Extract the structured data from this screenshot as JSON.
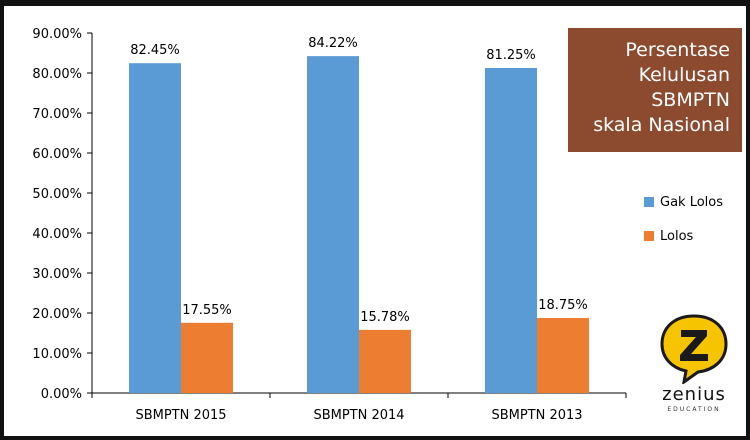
{
  "chart_data": {
    "type": "bar",
    "title_lines": [
      "Persentase",
      "Kelulusan",
      "SBMPTN",
      "skala Nasional"
    ],
    "categories": [
      "SBMPTN 2015",
      "SBMPTN 2014",
      "SBMPTN 2013"
    ],
    "series": [
      {
        "name": "Gak Lolos",
        "values": [
          82.45,
          84.22,
          81.25
        ],
        "labels": [
          "82.45%",
          "84.22%",
          "81.25%"
        ],
        "color": "#5b9bd5"
      },
      {
        "name": "Lolos",
        "values": [
          17.55,
          15.78,
          18.75
        ],
        "labels": [
          "17.55%",
          "15.78%",
          "18.75%"
        ],
        "color": "#ed7d31"
      }
    ],
    "y_ticks": [
      "0.00%",
      "10.00%",
      "20.00%",
      "30.00%",
      "40.00%",
      "50.00%",
      "60.00%",
      "70.00%",
      "80.00%",
      "90.00%"
    ],
    "ylim": [
      0,
      90
    ],
    "grid": false,
    "legend_position": "right"
  },
  "logo": {
    "icon": "zenius-z-speech-bubble-icon",
    "word": "zenius",
    "sub": "EDUCATION",
    "color": "#f6c400"
  }
}
